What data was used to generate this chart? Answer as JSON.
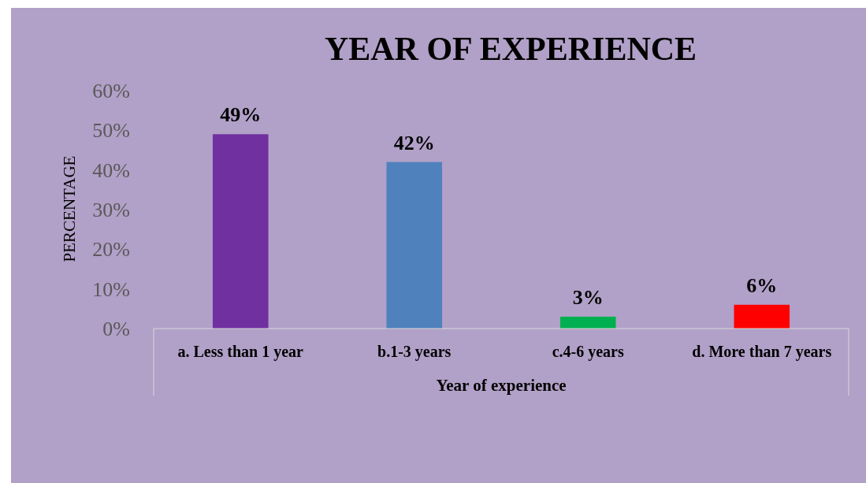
{
  "chart_data": {
    "type": "bar",
    "title": "YEAR OF EXPERIENCE",
    "xlabel": "Year of experience",
    "ylabel": "PERCENTAGE",
    "categories": [
      "a. Less than 1 year",
      "b.1-3 years",
      "c.4-6 years",
      "d. More than 7 years"
    ],
    "values": [
      49,
      42,
      3,
      6
    ],
    "colors": [
      "#7030a0",
      "#4f81bd",
      "#00b050",
      "#ff0000"
    ],
    "value_labels": [
      "49%",
      "42%",
      "3%",
      "6%"
    ],
    "ylim": [
      0,
      60
    ],
    "yticks": [
      {
        "value": 0,
        "label": "0%"
      },
      {
        "value": 10,
        "label": "10%"
      },
      {
        "value": 20,
        "label": "20%"
      },
      {
        "value": 30,
        "label": "30%"
      },
      {
        "value": 40,
        "label": "40%"
      },
      {
        "value": 50,
        "label": "50%"
      },
      {
        "value": 60,
        "label": "60%"
      }
    ]
  }
}
